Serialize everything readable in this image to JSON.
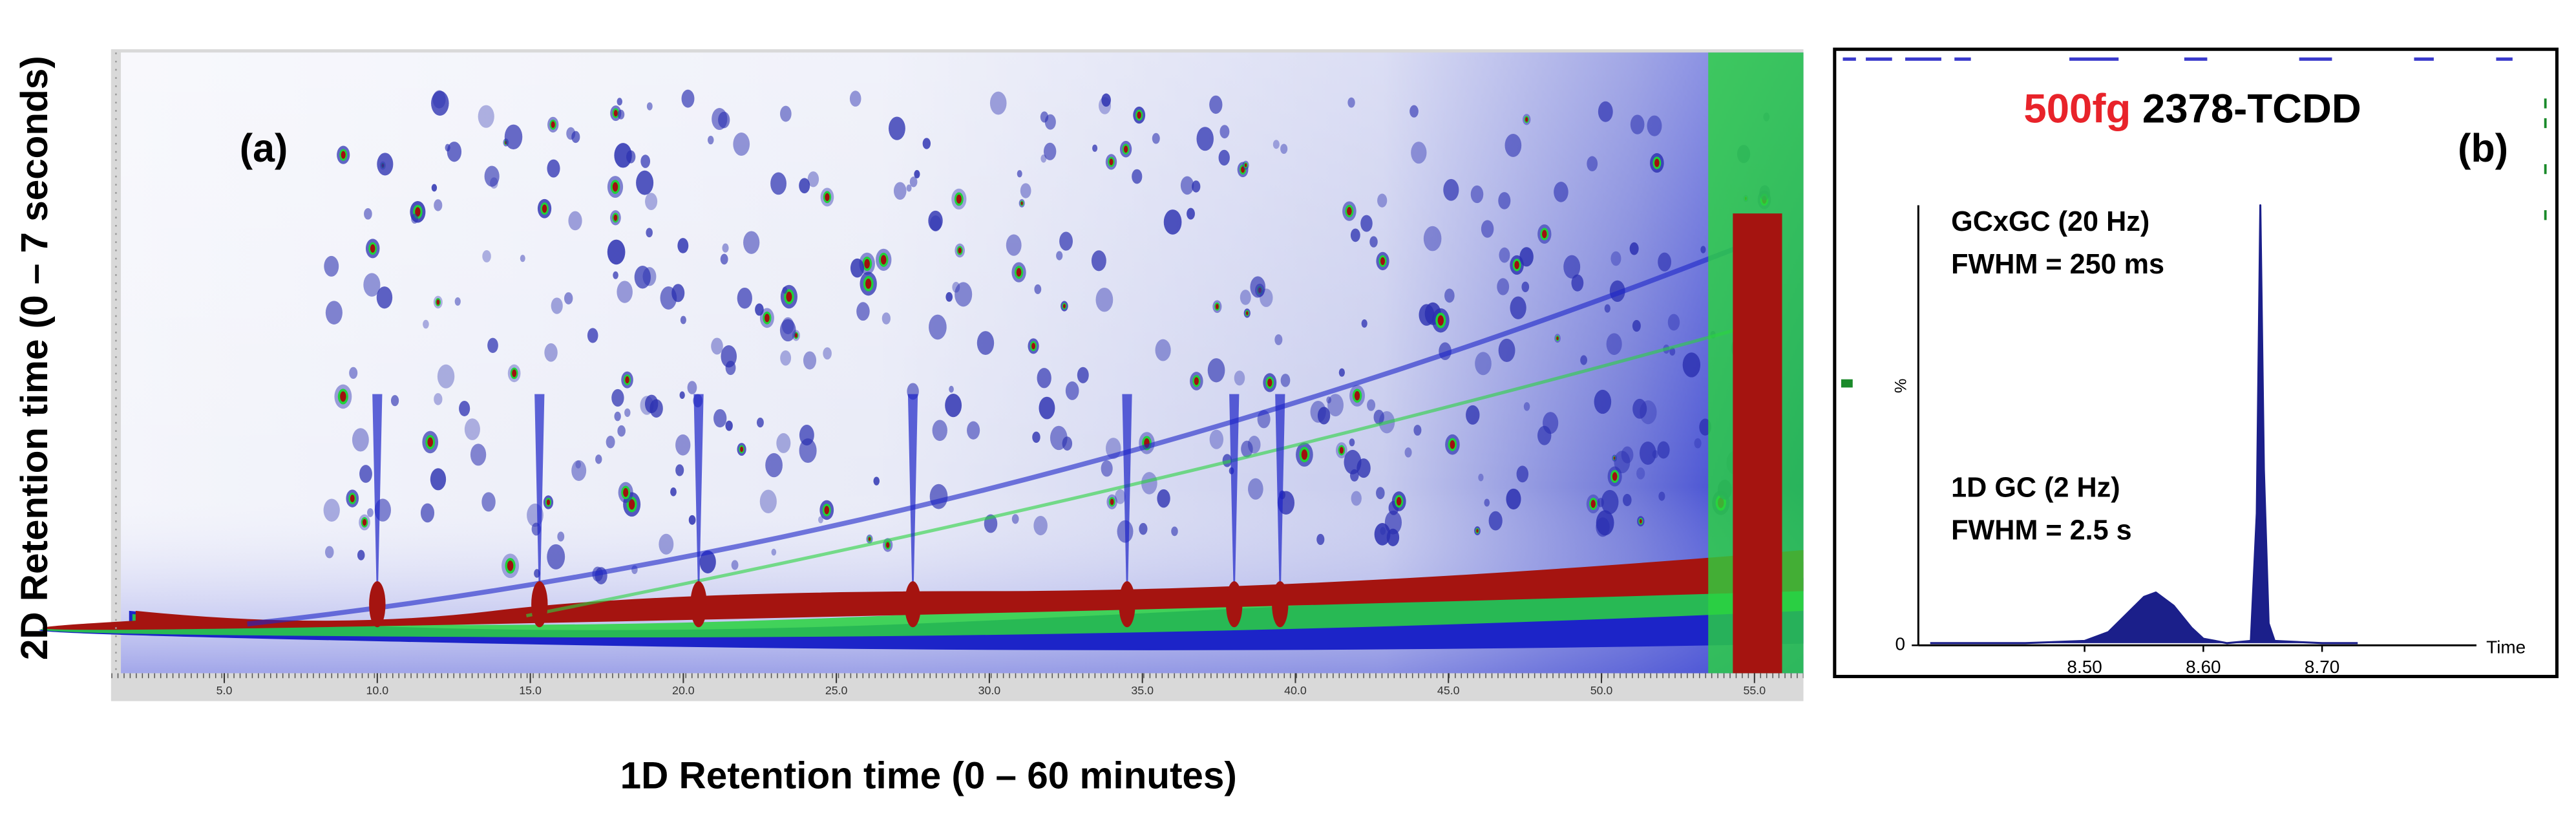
{
  "chart_data": [
    {
      "type": "image",
      "label": "(a)",
      "x_label": "1D Retention time (0 – 60 minutes)",
      "y_label": "2D Retention time (0 – 7 seconds)",
      "xlim": [
        1.3,
        56.6
      ],
      "xticks": [
        {
          "value": 5,
          "label": "5.0"
        },
        {
          "value": 10,
          "label": "10.0"
        },
        {
          "value": 15,
          "label": "15.0"
        },
        {
          "value": 20,
          "label": "20.0"
        },
        {
          "value": 25,
          "label": "25.0"
        },
        {
          "value": 30,
          "label": "30.0"
        },
        {
          "value": 35,
          "label": "35.0"
        },
        {
          "value": 40,
          "label": "40.0"
        },
        {
          "value": 45,
          "label": "45.0"
        },
        {
          "value": 50,
          "label": "50.0"
        },
        {
          "value": 55,
          "label": "55.0"
        }
      ]
    },
    {
      "type": "line",
      "label": "(b)",
      "title_highlight": "500fg",
      "title_highlight_color": "#e8232a",
      "title": "2378-TCDD",
      "annotations": [
        "GCxGC (20 Hz)",
        "FWHM = 250 ms",
        "1D GC (2 Hz)",
        "FWHM = 2.5 s"
      ],
      "x_label": "Time",
      "y_label": "%",
      "x": [
        8.37,
        8.45,
        8.5,
        8.52,
        8.535,
        8.55,
        8.56,
        8.575,
        8.59,
        8.6,
        8.62,
        8.64,
        8.645,
        8.648,
        8.651,
        8.655,
        8.66,
        8.7,
        8.73
      ],
      "series": [
        {
          "color": "#1b1f8a",
          "values": [
            0.5,
            0.5,
            1,
            3,
            7,
            11,
            12,
            9,
            4,
            1.5,
            0.5,
            1,
            30,
            100,
            40,
            5,
            1,
            0.5,
            0.5
          ]
        }
      ],
      "xlim": [
        8.36,
        8.83
      ],
      "ylim": [
        0,
        100
      ],
      "xticks": [
        {
          "value": 8.5,
          "label": "8.50"
        },
        {
          "value": 8.6,
          "label": "8.60"
        },
        {
          "value": 8.7,
          "label": "8.70"
        }
      ],
      "yticks": [
        0
      ]
    }
  ]
}
